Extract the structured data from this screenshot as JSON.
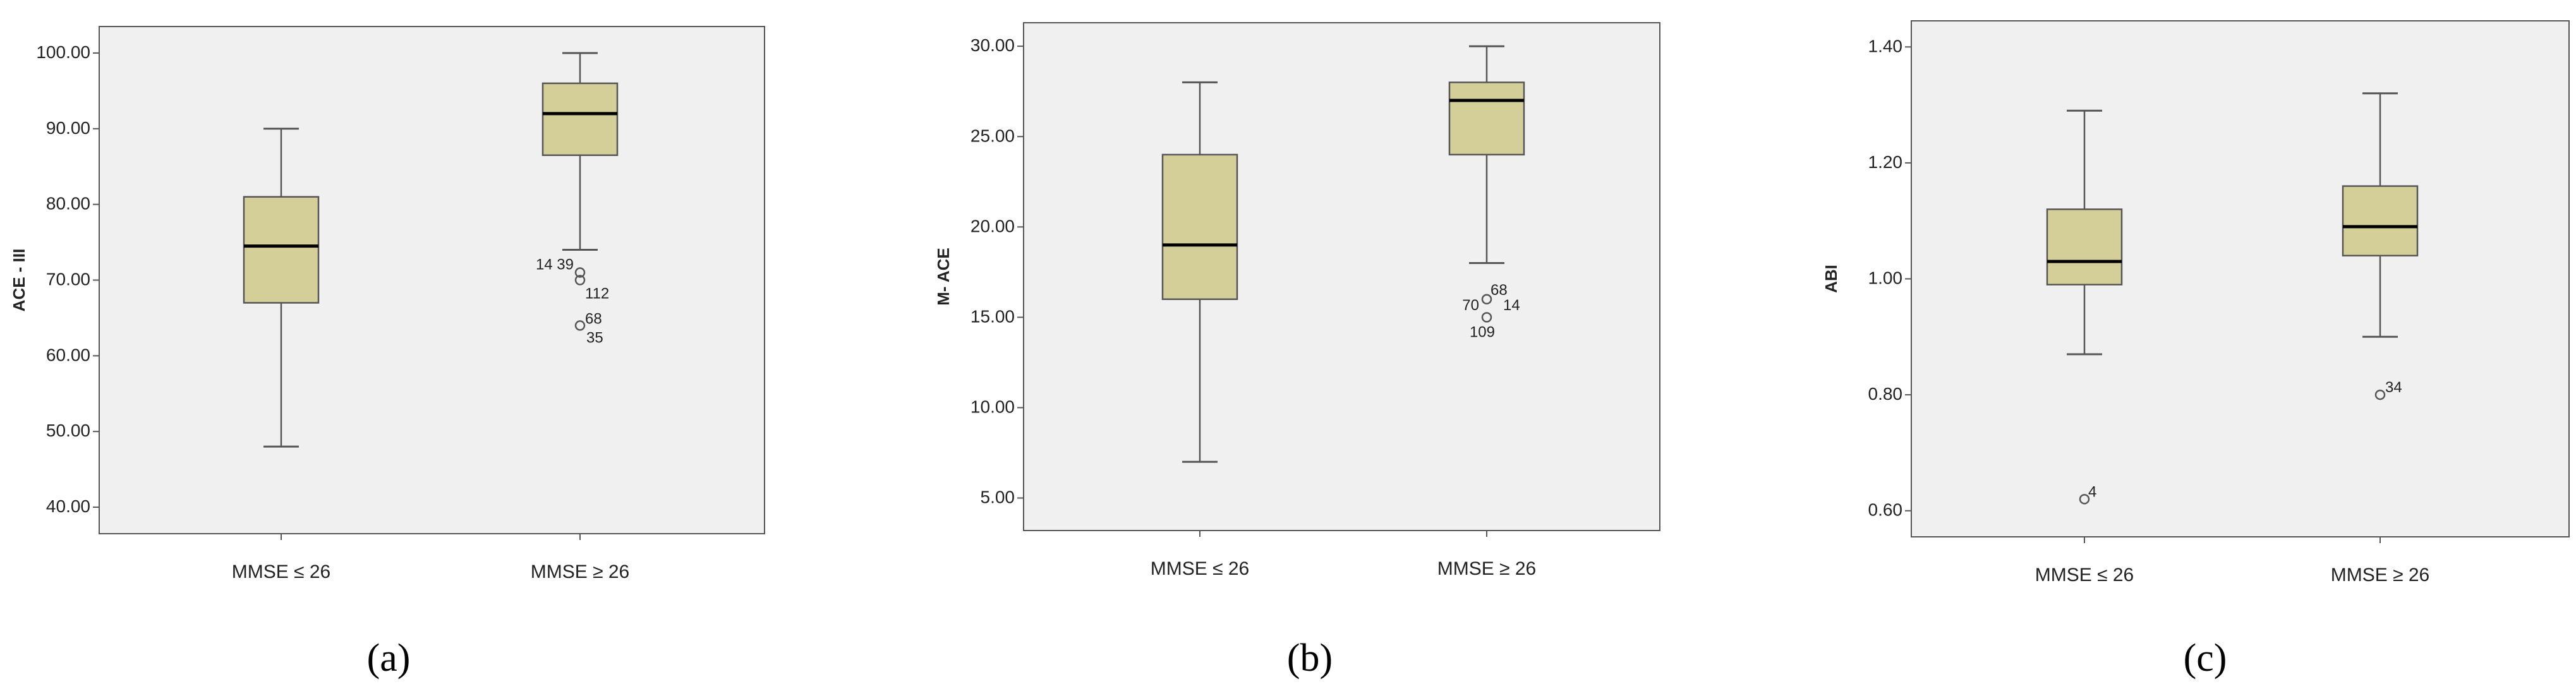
{
  "figure": {
    "panel_labels": [
      "(a)",
      "(b)",
      "(c)"
    ]
  },
  "colors": {
    "plot_background": "#f0f0f0",
    "box_fill": "#d4cf98",
    "box_stroke": "#555555",
    "median_line": "#000000",
    "axis": "#555555",
    "text": "#222222"
  },
  "chart_data": [
    {
      "type": "boxplot",
      "panel_label": "(a)",
      "title": "",
      "xlabel": "",
      "ylabel": "ACE - III",
      "ylim": [
        36.5,
        103.5
      ],
      "yticks": [
        40,
        50,
        60,
        70,
        80,
        90,
        100
      ],
      "ytick_labels": [
        "40.00",
        "50.00",
        "60.00",
        "70.00",
        "80.00",
        "90.00",
        "100.00"
      ],
      "grid": false,
      "categories": [
        "MMSE ≤ 26",
        "MMSE ≥ 26"
      ],
      "boxes": [
        {
          "category": "MMSE ≤ 26",
          "whisker_low": 48,
          "q1": 67,
          "median": 74.5,
          "q3": 81,
          "whisker_high": 90,
          "outliers": []
        },
        {
          "category": "MMSE ≥ 26",
          "whisker_low": 74,
          "q1": 86.5,
          "median": 92,
          "q3": 96,
          "whisker_high": 100,
          "outliers": [
            {
              "value": 71,
              "label": "14  39"
            },
            {
              "value": 70,
              "label": "112"
            },
            {
              "value": 64,
              "label": "68"
            },
            {
              "value": 64,
              "label": "35"
            }
          ]
        }
      ]
    },
    {
      "type": "boxplot",
      "panel_label": "(b)",
      "title": "",
      "xlabel": "",
      "ylabel": "M- ACE",
      "ylim": [
        3.2,
        31.3
      ],
      "yticks": [
        5,
        10,
        15,
        20,
        25,
        30
      ],
      "ytick_labels": [
        "5.00",
        "10.00",
        "15.00",
        "20.00",
        "25.00",
        "30.00"
      ],
      "grid": false,
      "categories": [
        "MMSE ≤ 26",
        "MMSE ≥ 26"
      ],
      "boxes": [
        {
          "category": "MMSE ≤ 26",
          "whisker_low": 7,
          "q1": 16,
          "median": 19,
          "q3": 24,
          "whisker_high": 28,
          "outliers": []
        },
        {
          "category": "MMSE ≥ 26",
          "whisker_low": 18,
          "q1": 24,
          "median": 27,
          "q3": 28,
          "whisker_high": 30,
          "outliers": [
            {
              "value": 16,
              "label": "68"
            },
            {
              "value": 16,
              "label": "70"
            },
            {
              "value": 16,
              "label": "14"
            },
            {
              "value": 15,
              "label": "109"
            }
          ]
        }
      ]
    },
    {
      "type": "boxplot",
      "panel_label": "(c)",
      "title": "",
      "xlabel": "",
      "ylabel": "ABI",
      "ylim": [
        0.555,
        1.445
      ],
      "yticks": [
        0.6,
        0.8,
        1.0,
        1.2,
        1.4
      ],
      "ytick_labels": [
        "0.60",
        "0.80",
        "1.00",
        "1.20",
        "1.40"
      ],
      "grid": false,
      "categories": [
        "MMSE ≤ 26",
        "MMSE ≥ 26"
      ],
      "boxes": [
        {
          "category": "MMSE ≤ 26",
          "whisker_low": 0.87,
          "q1": 0.99,
          "median": 1.03,
          "q3": 1.12,
          "whisker_high": 1.29,
          "outliers": [
            {
              "value": 0.62,
              "label": "4"
            }
          ]
        },
        {
          "category": "MMSE ≥ 26",
          "whisker_low": 0.9,
          "q1": 1.04,
          "median": 1.09,
          "q3": 1.16,
          "whisker_high": 1.32,
          "outliers": [
            {
              "value": 0.8,
              "label": "34"
            }
          ]
        }
      ]
    }
  ]
}
